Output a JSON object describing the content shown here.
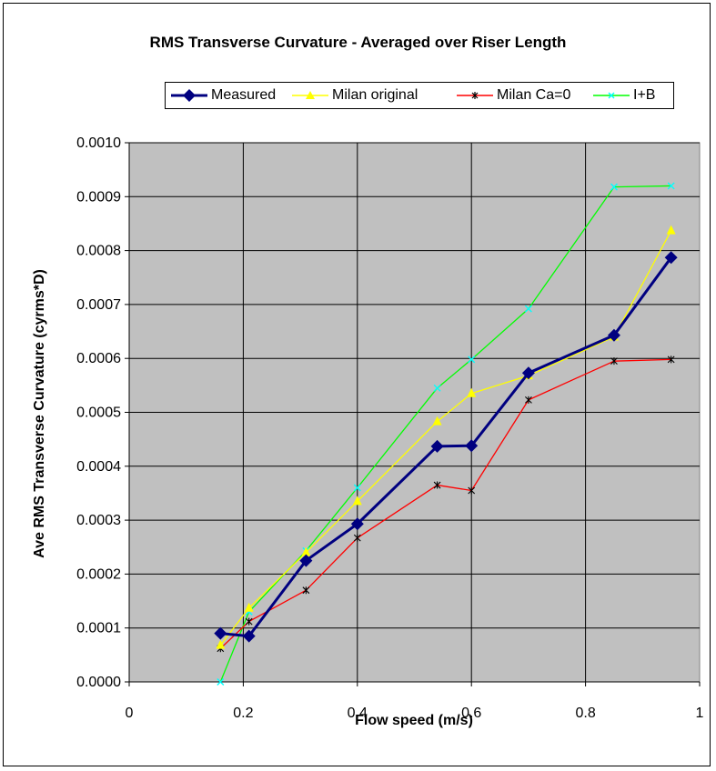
{
  "chart_data": {
    "type": "line",
    "title": "RMS Transverse Curvature - Averaged over Riser Length",
    "xlabel": "Flow speed (m/s)",
    "ylabel": "Ave RMS Transverse Curvature (cyrms*D)",
    "xlim": [
      0,
      1
    ],
    "ylim": [
      0,
      0.001
    ],
    "x_ticks": [
      "0",
      "0.2",
      "0.4",
      "0.6",
      "0.8",
      "1"
    ],
    "y_ticks": [
      "0.0000",
      "0.0001",
      "0.0002",
      "0.0003",
      "0.0004",
      "0.0005",
      "0.0006",
      "0.0007",
      "0.0008",
      "0.0009",
      "0.0010"
    ],
    "grid": true,
    "legend_position": "top",
    "plot_background": "#c0c0c0",
    "series": [
      {
        "name": "Measured",
        "color": "#000080",
        "marker": "diamond",
        "x": [
          0.16,
          0.21,
          0.31,
          0.4,
          0.54,
          0.6,
          0.7,
          0.85,
          0.95
        ],
        "y": [
          9e-05,
          8.5e-05,
          0.000225,
          0.000293,
          0.000437,
          0.000438,
          0.000573,
          0.000643,
          0.000787
        ]
      },
      {
        "name": "Milan original",
        "color": "#ffff00",
        "marker": "triangle",
        "x": [
          0.16,
          0.21,
          0.31,
          0.4,
          0.54,
          0.6,
          0.7,
          0.85,
          0.95
        ],
        "y": [
          6.8e-05,
          0.000137,
          0.00024,
          0.000335,
          0.000483,
          0.000535,
          0.000568,
          0.00064,
          0.000837
        ]
      },
      {
        "name": "Milan Ca=0",
        "color": "#ff0000",
        "marker": "star",
        "x": [
          0.16,
          0.21,
          0.31,
          0.4,
          0.54,
          0.6,
          0.7,
          0.85,
          0.95
        ],
        "y": [
          6.2e-05,
          0.000112,
          0.00017,
          0.000267,
          0.000365,
          0.000355,
          0.000523,
          0.000595,
          0.000598
        ]
      },
      {
        "name": "I+B",
        "color": "#00ff00",
        "marker_color": "#00ffff",
        "marker": "x",
        "x": [
          0.16,
          0.21,
          0.31,
          0.4,
          0.54,
          0.6,
          0.7,
          0.85,
          0.95
        ],
        "y": [
          0.0,
          0.00013,
          0.000243,
          0.00036,
          0.000545,
          0.000598,
          0.000692,
          0.000918,
          0.00092
        ]
      }
    ]
  }
}
